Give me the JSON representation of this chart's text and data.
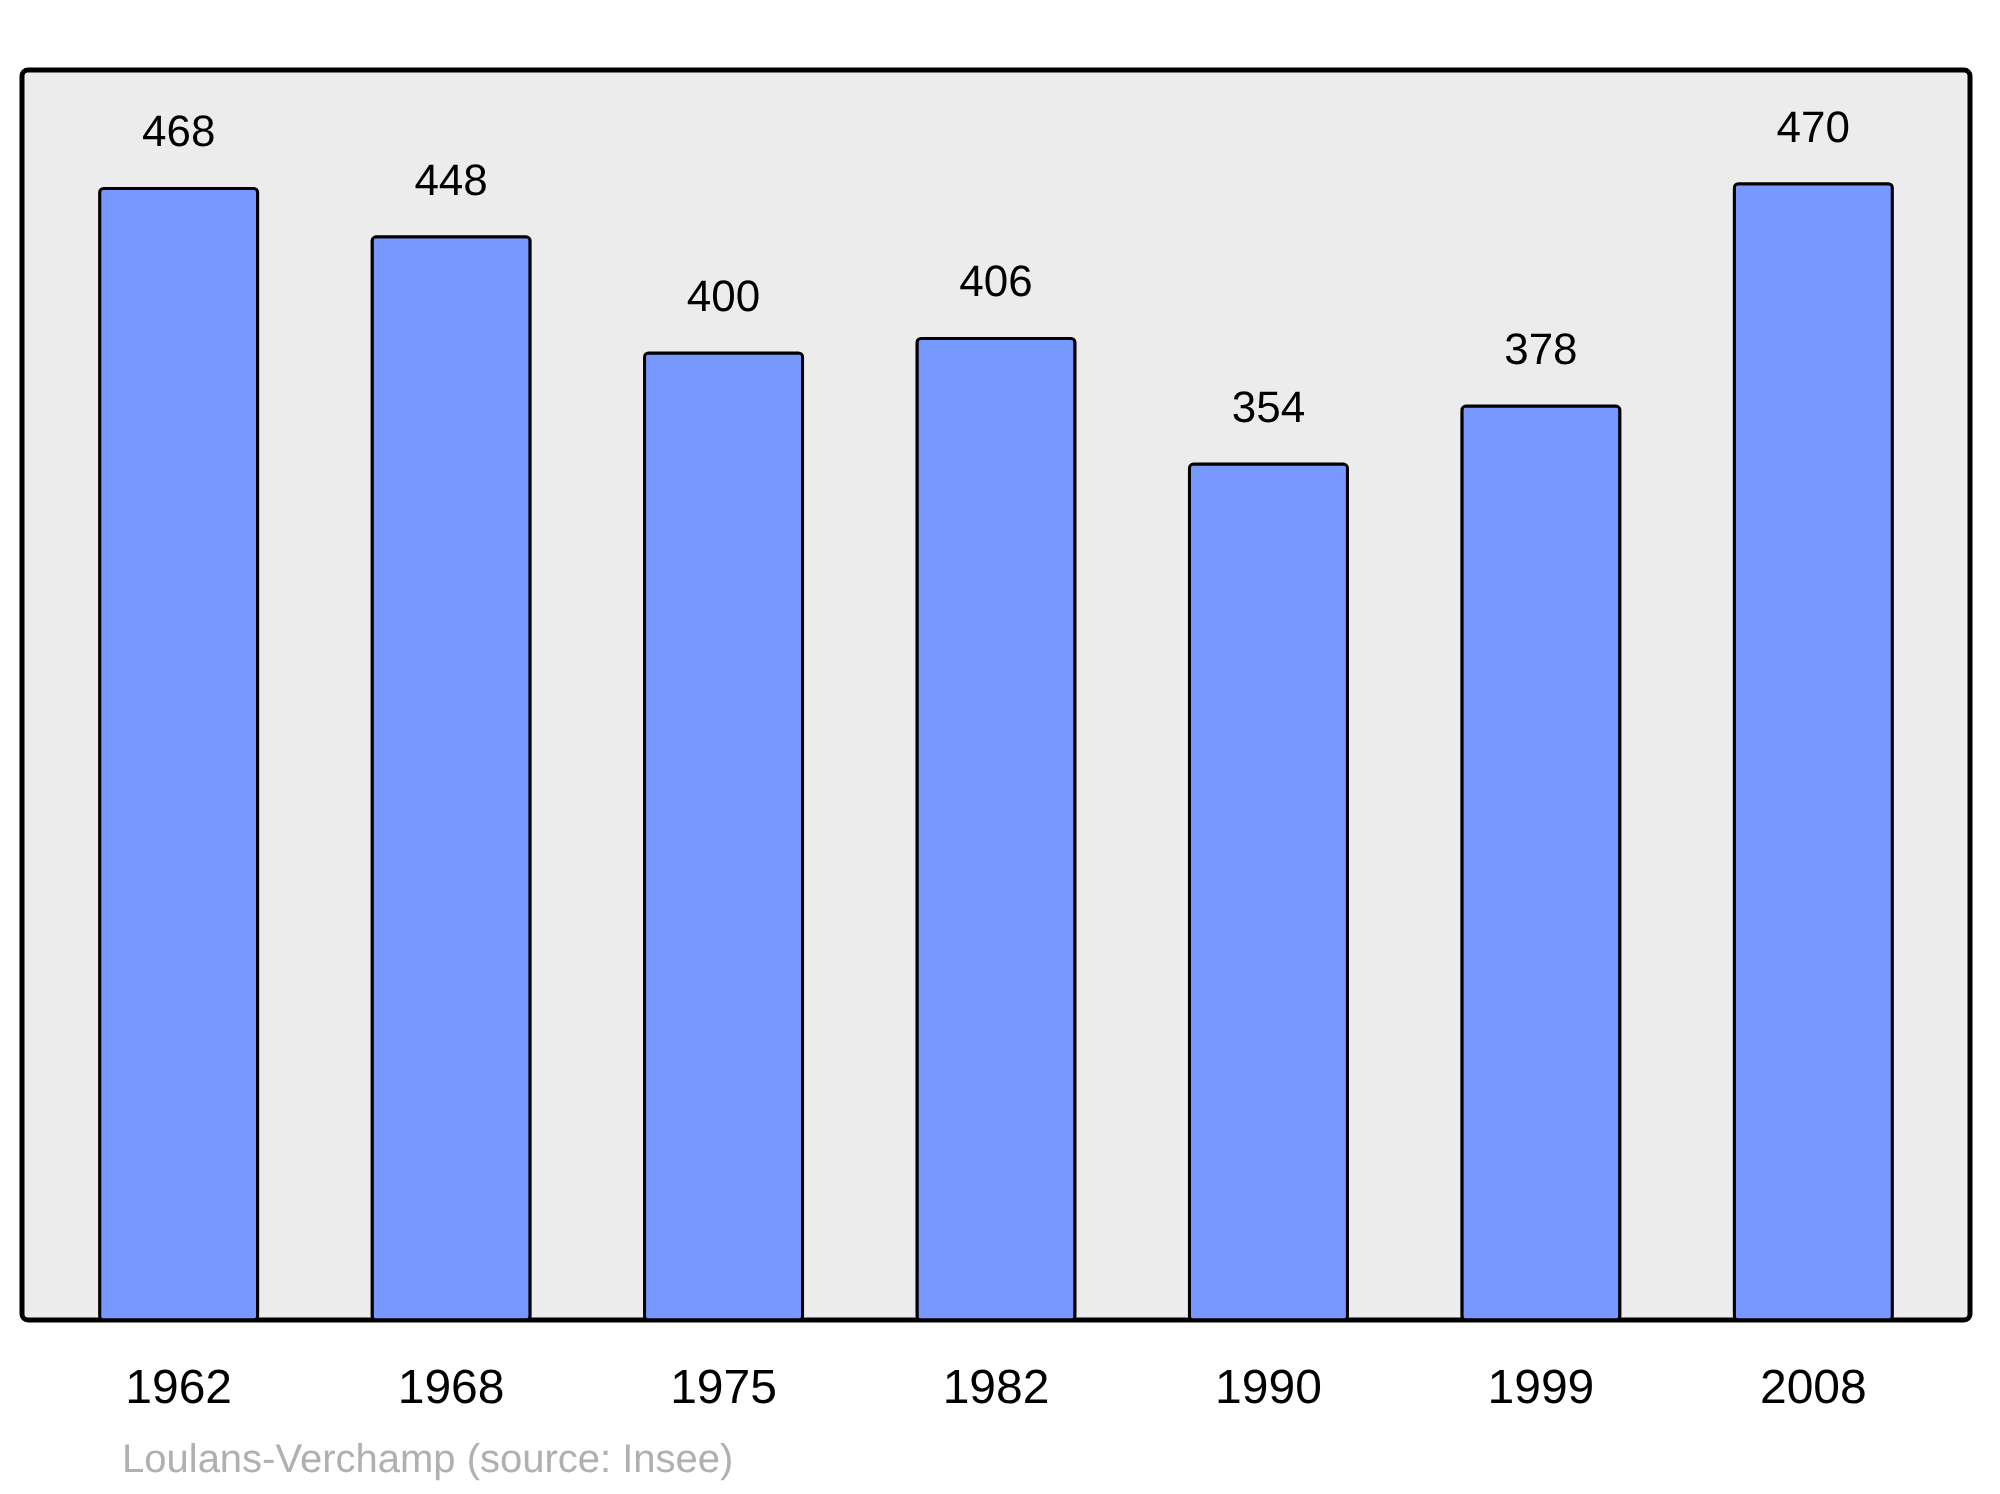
{
  "chart_data": {
    "type": "bar",
    "categories": [
      "1962",
      "1968",
      "1975",
      "1982",
      "1990",
      "1999",
      "2008"
    ],
    "values": [
      468,
      448,
      400,
      406,
      354,
      378,
      470
    ],
    "color": "#7799ff",
    "ylim": [
      0,
      517
    ],
    "data_labels": true,
    "annotations": [
      "Loulans-Verchamp    (source: Insee)"
    ]
  }
}
